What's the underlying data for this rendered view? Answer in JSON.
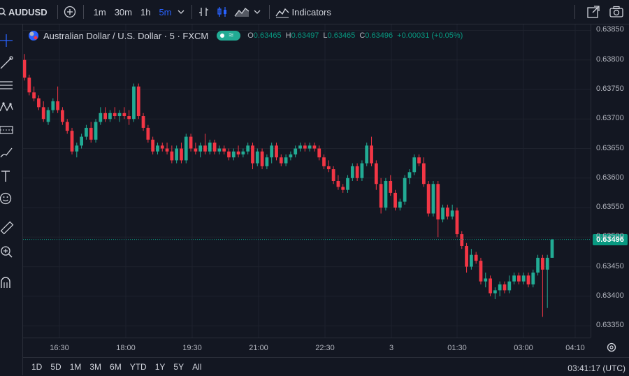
{
  "toolbar": {
    "symbol": "AUDUSD",
    "timeframes": [
      {
        "label": "1m",
        "active": false
      },
      {
        "label": "30m",
        "active": false
      },
      {
        "label": "1h",
        "active": false
      },
      {
        "label": "5m",
        "active": true
      }
    ],
    "indicators_label": "Indicators",
    "accent": "#2962ff"
  },
  "legend": {
    "title": "Australian Dollar / U.S. Dollar · 5 · FXCM",
    "o_label": "O",
    "o": "0.63465",
    "h_label": "H",
    "h": "0.63497",
    "l_label": "L",
    "l": "0.63465",
    "c_label": "C",
    "c": "0.63496",
    "change": "+0.00031 (+0.05%)"
  },
  "current_price": "0.63496",
  "bottom": {
    "ranges": [
      "1D",
      "5D",
      "1M",
      "3M",
      "6M",
      "YTD",
      "1Y",
      "5Y",
      "All"
    ],
    "clock": "03:41:17 (UTC)"
  },
  "chart_data": {
    "type": "candlestick",
    "up_color": "#22ab94",
    "down_color": "#f23645",
    "ylim": [
      0.6333,
      0.6386
    ],
    "y_ticks": [
      "0.63850",
      "0.63800",
      "0.63750",
      "0.63700",
      "0.63650",
      "0.63600",
      "0.63550",
      "0.63500",
      "0.63450",
      "0.63400",
      "0.63350"
    ],
    "x_ticks": [
      "16:30",
      "18:00",
      "19:30",
      "21:00",
      "22:30",
      "3",
      "01:30",
      "03:00",
      "04:10"
    ],
    "candles": [
      {
        "o": 0.638,
        "h": 0.6381,
        "l": 0.63765,
        "c": 0.6377
      },
      {
        "o": 0.6377,
        "h": 0.63775,
        "l": 0.6374,
        "c": 0.63745
      },
      {
        "o": 0.63745,
        "h": 0.63755,
        "l": 0.6373,
        "c": 0.63735
      },
      {
        "o": 0.63735,
        "h": 0.6374,
        "l": 0.63715,
        "c": 0.6372
      },
      {
        "o": 0.6372,
        "h": 0.6373,
        "l": 0.63695,
        "c": 0.637
      },
      {
        "o": 0.63695,
        "h": 0.6372,
        "l": 0.6369,
        "c": 0.63715
      },
      {
        "o": 0.63715,
        "h": 0.63735,
        "l": 0.6371,
        "c": 0.6373
      },
      {
        "o": 0.6373,
        "h": 0.63755,
        "l": 0.6371,
        "c": 0.63715
      },
      {
        "o": 0.63715,
        "h": 0.6372,
        "l": 0.6369,
        "c": 0.63695
      },
      {
        "o": 0.63695,
        "h": 0.637,
        "l": 0.63675,
        "c": 0.6368
      },
      {
        "o": 0.6368,
        "h": 0.63685,
        "l": 0.6364,
        "c": 0.63645
      },
      {
        "o": 0.63645,
        "h": 0.6366,
        "l": 0.63635,
        "c": 0.63655
      },
      {
        "o": 0.63655,
        "h": 0.63675,
        "l": 0.6365,
        "c": 0.6367
      },
      {
        "o": 0.6367,
        "h": 0.6369,
        "l": 0.63665,
        "c": 0.63685
      },
      {
        "o": 0.63685,
        "h": 0.63695,
        "l": 0.6366,
        "c": 0.63665
      },
      {
        "o": 0.63665,
        "h": 0.637,
        "l": 0.6366,
        "c": 0.63695
      },
      {
        "o": 0.63695,
        "h": 0.6372,
        "l": 0.6369,
        "c": 0.6371
      },
      {
        "o": 0.6371,
        "h": 0.6372,
        "l": 0.63695,
        "c": 0.637
      },
      {
        "o": 0.637,
        "h": 0.63715,
        "l": 0.63695,
        "c": 0.6371
      },
      {
        "o": 0.6371,
        "h": 0.6372,
        "l": 0.637,
        "c": 0.63705
      },
      {
        "o": 0.63705,
        "h": 0.63715,
        "l": 0.63695,
        "c": 0.6371
      },
      {
        "o": 0.6371,
        "h": 0.6372,
        "l": 0.637,
        "c": 0.63705
      },
      {
        "o": 0.63705,
        "h": 0.63715,
        "l": 0.6369,
        "c": 0.637
      },
      {
        "o": 0.637,
        "h": 0.6376,
        "l": 0.63695,
        "c": 0.63755
      },
      {
        "o": 0.63755,
        "h": 0.6376,
        "l": 0.637,
        "c": 0.63705
      },
      {
        "o": 0.63705,
        "h": 0.6371,
        "l": 0.6368,
        "c": 0.63685
      },
      {
        "o": 0.63685,
        "h": 0.6369,
        "l": 0.6366,
        "c": 0.63665
      },
      {
        "o": 0.63665,
        "h": 0.6367,
        "l": 0.6364,
        "c": 0.63645
      },
      {
        "o": 0.63645,
        "h": 0.6366,
        "l": 0.6364,
        "c": 0.63655
      },
      {
        "o": 0.63655,
        "h": 0.6366,
        "l": 0.63645,
        "c": 0.6365
      },
      {
        "o": 0.6365,
        "h": 0.6366,
        "l": 0.6364,
        "c": 0.63645
      },
      {
        "o": 0.63645,
        "h": 0.63655,
        "l": 0.63625,
        "c": 0.6363
      },
      {
        "o": 0.6363,
        "h": 0.63655,
        "l": 0.63625,
        "c": 0.6365
      },
      {
        "o": 0.6365,
        "h": 0.6366,
        "l": 0.63625,
        "c": 0.6363
      },
      {
        "o": 0.6363,
        "h": 0.63675,
        "l": 0.63625,
        "c": 0.6367
      },
      {
        "o": 0.6367,
        "h": 0.63675,
        "l": 0.63645,
        "c": 0.6365
      },
      {
        "o": 0.6365,
        "h": 0.6366,
        "l": 0.6364,
        "c": 0.63645
      },
      {
        "o": 0.63645,
        "h": 0.6366,
        "l": 0.63635,
        "c": 0.63655
      },
      {
        "o": 0.63655,
        "h": 0.63675,
        "l": 0.6364,
        "c": 0.63645
      },
      {
        "o": 0.63645,
        "h": 0.63665,
        "l": 0.6364,
        "c": 0.6366
      },
      {
        "o": 0.6366,
        "h": 0.63665,
        "l": 0.6364,
        "c": 0.63645
      },
      {
        "o": 0.63645,
        "h": 0.63655,
        "l": 0.6364,
        "c": 0.6365
      },
      {
        "o": 0.6365,
        "h": 0.63655,
        "l": 0.6364,
        "c": 0.63645
      },
      {
        "o": 0.63645,
        "h": 0.6365,
        "l": 0.6363,
        "c": 0.63635
      },
      {
        "o": 0.63635,
        "h": 0.6365,
        "l": 0.6363,
        "c": 0.63645
      },
      {
        "o": 0.63645,
        "h": 0.63655,
        "l": 0.63635,
        "c": 0.6364
      },
      {
        "o": 0.6364,
        "h": 0.6365,
        "l": 0.63635,
        "c": 0.63645
      },
      {
        "o": 0.63645,
        "h": 0.6366,
        "l": 0.6364,
        "c": 0.63655
      },
      {
        "o": 0.63655,
        "h": 0.6366,
        "l": 0.63615,
        "c": 0.63625
      },
      {
        "o": 0.63625,
        "h": 0.6365,
        "l": 0.6362,
        "c": 0.63645
      },
      {
        "o": 0.63645,
        "h": 0.6365,
        "l": 0.63615,
        "c": 0.6362
      },
      {
        "o": 0.6362,
        "h": 0.6364,
        "l": 0.63615,
        "c": 0.63635
      },
      {
        "o": 0.63635,
        "h": 0.6366,
        "l": 0.63625,
        "c": 0.63655
      },
      {
        "o": 0.63655,
        "h": 0.6366,
        "l": 0.6363,
        "c": 0.63635
      },
      {
        "o": 0.63635,
        "h": 0.6364,
        "l": 0.6362,
        "c": 0.63625
      },
      {
        "o": 0.63625,
        "h": 0.6364,
        "l": 0.6362,
        "c": 0.63635
      },
      {
        "o": 0.63635,
        "h": 0.63645,
        "l": 0.6363,
        "c": 0.6364
      },
      {
        "o": 0.6364,
        "h": 0.63655,
        "l": 0.63635,
        "c": 0.6365
      },
      {
        "o": 0.6365,
        "h": 0.6366,
        "l": 0.63645,
        "c": 0.63655
      },
      {
        "o": 0.63655,
        "h": 0.6366,
        "l": 0.63645,
        "c": 0.6365
      },
      {
        "o": 0.6365,
        "h": 0.6366,
        "l": 0.63645,
        "c": 0.63655
      },
      {
        "o": 0.63655,
        "h": 0.6366,
        "l": 0.63645,
        "c": 0.6365
      },
      {
        "o": 0.6365,
        "h": 0.63655,
        "l": 0.6363,
        "c": 0.63635
      },
      {
        "o": 0.63635,
        "h": 0.6364,
        "l": 0.63615,
        "c": 0.6362
      },
      {
        "o": 0.6362,
        "h": 0.6363,
        "l": 0.6361,
        "c": 0.63615
      },
      {
        "o": 0.63615,
        "h": 0.6362,
        "l": 0.6359,
        "c": 0.63595
      },
      {
        "o": 0.63595,
        "h": 0.63605,
        "l": 0.6358,
        "c": 0.63585
      },
      {
        "o": 0.63585,
        "h": 0.6359,
        "l": 0.63575,
        "c": 0.6358
      },
      {
        "o": 0.6358,
        "h": 0.63605,
        "l": 0.63575,
        "c": 0.636
      },
      {
        "o": 0.636,
        "h": 0.63625,
        "l": 0.63595,
        "c": 0.6362
      },
      {
        "o": 0.6362,
        "h": 0.63625,
        "l": 0.63595,
        "c": 0.636
      },
      {
        "o": 0.636,
        "h": 0.6363,
        "l": 0.63595,
        "c": 0.63625
      },
      {
        "o": 0.63625,
        "h": 0.6366,
        "l": 0.6362,
        "c": 0.63655
      },
      {
        "o": 0.63655,
        "h": 0.6367,
        "l": 0.6362,
        "c": 0.63625
      },
      {
        "o": 0.63625,
        "h": 0.6363,
        "l": 0.6358,
        "c": 0.6359
      },
      {
        "o": 0.6359,
        "h": 0.636,
        "l": 0.6354,
        "c": 0.6355
      },
      {
        "o": 0.6355,
        "h": 0.636,
        "l": 0.63545,
        "c": 0.63595
      },
      {
        "o": 0.63595,
        "h": 0.63605,
        "l": 0.6357,
        "c": 0.63575
      },
      {
        "o": 0.63575,
        "h": 0.6358,
        "l": 0.63545,
        "c": 0.6355
      },
      {
        "o": 0.6355,
        "h": 0.63565,
        "l": 0.63545,
        "c": 0.6356
      },
      {
        "o": 0.6356,
        "h": 0.63605,
        "l": 0.63555,
        "c": 0.636
      },
      {
        "o": 0.636,
        "h": 0.63615,
        "l": 0.6359,
        "c": 0.6361
      },
      {
        "o": 0.6361,
        "h": 0.6364,
        "l": 0.63605,
        "c": 0.63635
      },
      {
        "o": 0.63635,
        "h": 0.6364,
        "l": 0.6362,
        "c": 0.63625
      },
      {
        "o": 0.63625,
        "h": 0.63635,
        "l": 0.63585,
        "c": 0.6359
      },
      {
        "o": 0.6359,
        "h": 0.63595,
        "l": 0.63535,
        "c": 0.6354
      },
      {
        "o": 0.6354,
        "h": 0.63595,
        "l": 0.63535,
        "c": 0.6359
      },
      {
        "o": 0.6359,
        "h": 0.63595,
        "l": 0.635,
        "c": 0.6353
      },
      {
        "o": 0.6353,
        "h": 0.63555,
        "l": 0.63525,
        "c": 0.6355
      },
      {
        "o": 0.6355,
        "h": 0.63555,
        "l": 0.6353,
        "c": 0.63535
      },
      {
        "o": 0.63535,
        "h": 0.63555,
        "l": 0.6353,
        "c": 0.63545
      },
      {
        "o": 0.63545,
        "h": 0.6355,
        "l": 0.635,
        "c": 0.63505
      },
      {
        "o": 0.63505,
        "h": 0.6351,
        "l": 0.6348,
        "c": 0.63485
      },
      {
        "o": 0.63485,
        "h": 0.6349,
        "l": 0.6344,
        "c": 0.6345
      },
      {
        "o": 0.6345,
        "h": 0.6348,
        "l": 0.63445,
        "c": 0.6347
      },
      {
        "o": 0.6347,
        "h": 0.63475,
        "l": 0.63455,
        "c": 0.6346
      },
      {
        "o": 0.6346,
        "h": 0.63465,
        "l": 0.6342,
        "c": 0.63425
      },
      {
        "o": 0.63425,
        "h": 0.6344,
        "l": 0.63415,
        "c": 0.6343
      },
      {
        "o": 0.6343,
        "h": 0.63435,
        "l": 0.634,
        "c": 0.63405
      },
      {
        "o": 0.63405,
        "h": 0.63415,
        "l": 0.63395,
        "c": 0.6341
      },
      {
        "o": 0.6341,
        "h": 0.63425,
        "l": 0.634,
        "c": 0.6342
      },
      {
        "o": 0.6342,
        "h": 0.63425,
        "l": 0.63405,
        "c": 0.6341
      },
      {
        "o": 0.6341,
        "h": 0.63435,
        "l": 0.63405,
        "c": 0.63425
      },
      {
        "o": 0.63425,
        "h": 0.6344,
        "l": 0.6342,
        "c": 0.63435
      },
      {
        "o": 0.63435,
        "h": 0.6344,
        "l": 0.6342,
        "c": 0.63425
      },
      {
        "o": 0.63425,
        "h": 0.6344,
        "l": 0.6342,
        "c": 0.63435
      },
      {
        "o": 0.63435,
        "h": 0.6344,
        "l": 0.63415,
        "c": 0.6342
      },
      {
        "o": 0.6342,
        "h": 0.63445,
        "l": 0.63415,
        "c": 0.6344
      },
      {
        "o": 0.6344,
        "h": 0.6347,
        "l": 0.63435,
        "c": 0.63465
      },
      {
        "o": 0.63465,
        "h": 0.6347,
        "l": 0.63365,
        "c": 0.63445
      },
      {
        "o": 0.63445,
        "h": 0.6347,
        "l": 0.6338,
        "c": 0.63465
      },
      {
        "o": 0.63465,
        "h": 0.63497,
        "l": 0.63465,
        "c": 0.63496
      }
    ]
  }
}
